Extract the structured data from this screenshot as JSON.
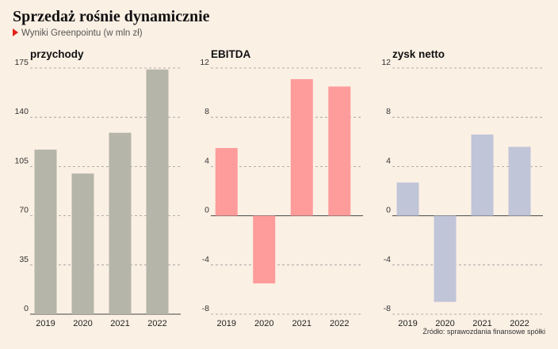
{
  "title": "Sprzedaż rośnie dynamicznie",
  "subtitle": "Wyniki Greenpointu (w mln zł)",
  "source": "Źródło: sprawozdania finansowe spółki",
  "colors": {
    "revenue": "#b5b5a9",
    "ebitda": "#fe9c9b",
    "net_profit": "#c0c5d8",
    "grid": "#999999",
    "text": "#111111"
  },
  "chart_data": [
    {
      "type": "bar",
      "title": "przychody",
      "categories": [
        "2019",
        "2020",
        "2021",
        "2022"
      ],
      "values": [
        117,
        100,
        129,
        174
      ],
      "ylim": [
        0,
        175
      ],
      "yticks": [
        "175",
        "140",
        "105",
        "70",
        "35",
        "0"
      ],
      "grid": true
    },
    {
      "type": "bar",
      "title": "EBITDA",
      "categories": [
        "2019",
        "2020",
        "2021",
        "2022"
      ],
      "values": [
        5.5,
        -5.5,
        11.1,
        10.5
      ],
      "ylim": [
        -8,
        12
      ],
      "yticks": [
        "12",
        "8",
        "4",
        "0",
        "-4",
        "-8"
      ],
      "grid": true
    },
    {
      "type": "bar",
      "title": "zysk netto",
      "categories": [
        "2019",
        "2020",
        "2021",
        "2022"
      ],
      "values": [
        2.7,
        -7.0,
        6.6,
        5.6
      ],
      "ylim": [
        -8,
        12
      ],
      "yticks": [
        "12",
        "8",
        "4",
        "0",
        "-4",
        "-8"
      ],
      "grid": true
    }
  ]
}
